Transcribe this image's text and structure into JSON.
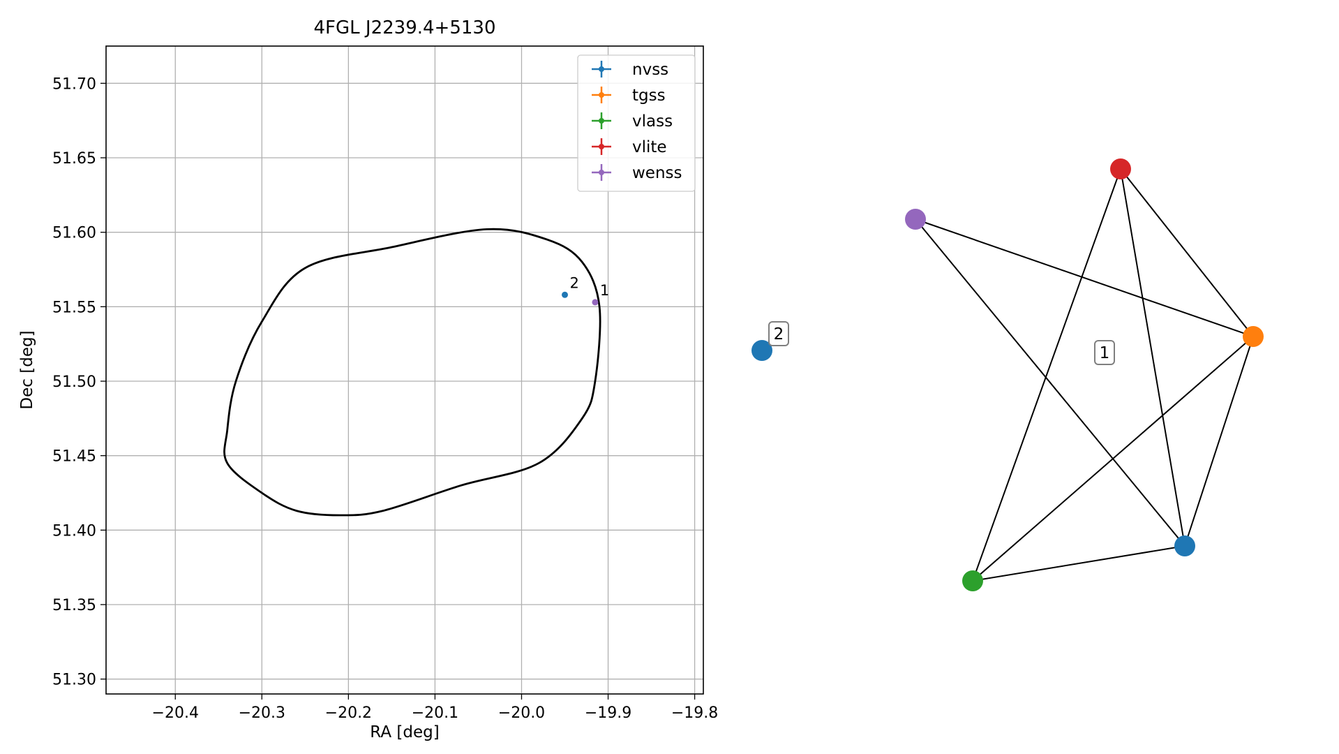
{
  "chart_data": [
    {
      "type": "scatter",
      "title": "4FGL J2239.4+5130",
      "xlabel": "RA [deg]",
      "ylabel": "Dec [deg]",
      "xlim": [
        -20.48,
        -19.79
      ],
      "ylim": [
        51.29,
        51.725
      ],
      "xticks": [
        -20.4,
        -20.3,
        -20.2,
        -20.1,
        -20.0,
        -19.9,
        -19.8
      ],
      "xtick_labels": [
        "−20.4",
        "−20.3",
        "−20.2",
        "−20.1",
        "−20.0",
        "−19.9",
        "−19.8"
      ],
      "yticks": [
        51.3,
        51.35,
        51.4,
        51.45,
        51.5,
        51.55,
        51.6,
        51.65,
        51.7
      ],
      "ytick_labels": [
        "51.30",
        "51.35",
        "51.40",
        "51.45",
        "51.50",
        "51.55",
        "51.60",
        "51.65",
        "51.70"
      ],
      "grid": true,
      "legend_position": "top-right",
      "legend": [
        {
          "name": "nvss",
          "color": "#1f77b4"
        },
        {
          "name": "tgss",
          "color": "#ff7f0e"
        },
        {
          "name": "vlass",
          "color": "#2ca02c"
        },
        {
          "name": "vlite",
          "color": "#d62728"
        },
        {
          "name": "wenss",
          "color": "#9467bd"
        }
      ],
      "points": [
        {
          "label": "2",
          "x": -19.95,
          "y": 51.558,
          "color": "#1f77b4"
        },
        {
          "label": "1",
          "x": -19.915,
          "y": 51.553,
          "color": "#9467bd"
        }
      ],
      "ellipse": {
        "color": "#000000",
        "outline": [
          [
            -20.34,
            51.467
          ],
          [
            -20.33,
            51.5
          ],
          [
            -20.3,
            51.54
          ],
          [
            -20.25,
            51.576
          ],
          [
            -20.15,
            51.59
          ],
          [
            -20.04,
            51.602
          ],
          [
            -19.97,
            51.595
          ],
          [
            -19.93,
            51.58
          ],
          [
            -19.91,
            51.55
          ],
          [
            -19.915,
            51.5
          ],
          [
            -19.93,
            51.475
          ],
          [
            -19.98,
            51.445
          ],
          [
            -20.07,
            51.43
          ],
          [
            -20.16,
            51.413
          ],
          [
            -20.21,
            51.41
          ],
          [
            -20.26,
            51.413
          ],
          [
            -20.3,
            51.425
          ],
          [
            -20.34,
            51.445
          ]
        ]
      }
    },
    {
      "type": "network",
      "nodes": [
        {
          "id": "nvss-a",
          "color": "#1f77b4"
        },
        {
          "id": "tgss",
          "color": "#ff7f0e"
        },
        {
          "id": "vlass",
          "color": "#2ca02c"
        },
        {
          "id": "vlite",
          "color": "#d62728"
        },
        {
          "id": "wenss",
          "color": "#9467bd"
        },
        {
          "id": "nvss-b",
          "color": "#1f77b4"
        }
      ],
      "edges": [
        [
          "vlite",
          "tgss"
        ],
        [
          "vlite",
          "nvss-a"
        ],
        [
          "vlite",
          "vlass"
        ],
        [
          "wenss",
          "tgss"
        ],
        [
          "wenss",
          "nvss-a"
        ],
        [
          "tgss",
          "vlass"
        ],
        [
          "tgss",
          "nvss-a"
        ],
        [
          "vlass",
          "nvss-a"
        ]
      ],
      "group_labels": [
        "1",
        "2"
      ]
    }
  ]
}
